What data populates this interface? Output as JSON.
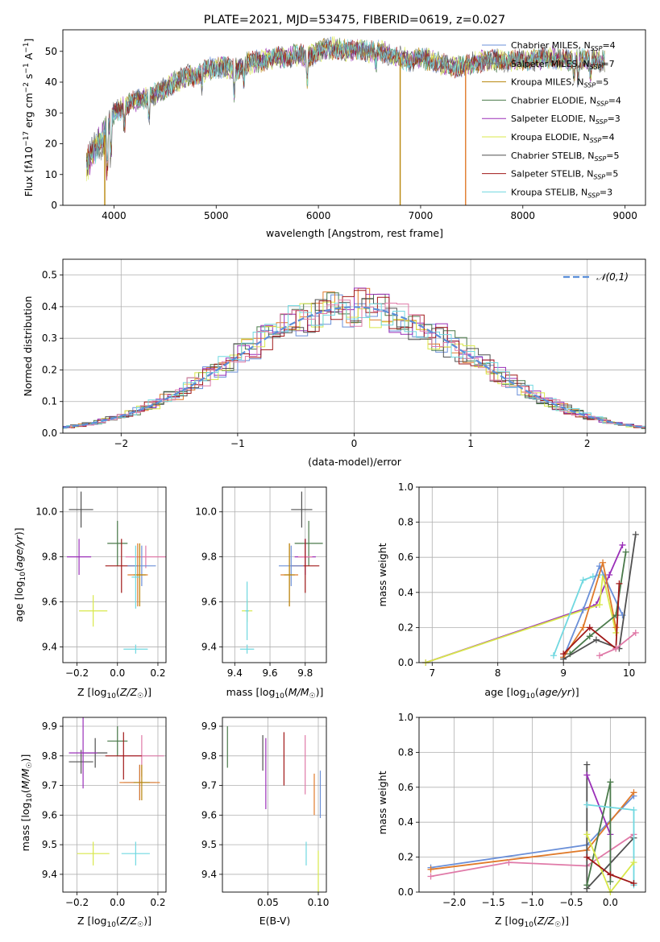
{
  "chart_data": [
    {
      "type": "line",
      "title": "PLATE=2021, MJD=53475, FIBERID=0619, z=0.027",
      "xlabel": "wavelength [Angstrom, rest frame]",
      "ylabel": "Flux [f_λ10^-17 erg cm^-2 s^-1 A^-1]",
      "xlim": [
        3500,
        9200
      ],
      "ylim": [
        0,
        57
      ],
      "xticks": [
        4000,
        5000,
        6000,
        7000,
        8000,
        9000
      ],
      "yticks": [
        0,
        10,
        20,
        30,
        40,
        50
      ],
      "spectrum_x": [
        3730,
        3800,
        3900,
        4000,
        4100,
        4200,
        4300,
        4400,
        4500,
        4600,
        4700,
        4800,
        4900,
        5000,
        5100,
        5200,
        5300,
        5400,
        5500,
        5600,
        5700,
        5800,
        5900,
        6000,
        6100,
        6200,
        6300,
        6400,
        6500,
        6600,
        6700,
        6800,
        6900,
        7000,
        7100,
        7200,
        7300,
        7400,
        7500,
        7600,
        7700,
        7800,
        7900,
        8000,
        8100,
        8200,
        8300,
        8400,
        8500,
        8600,
        8700,
        8800
      ],
      "spectrum_y": [
        13,
        18,
        22,
        30,
        32,
        34,
        35,
        36,
        38,
        40,
        42,
        42,
        44,
        45,
        45,
        44,
        46,
        47,
        47,
        48,
        48,
        49,
        48,
        50,
        51,
        51,
        50,
        51,
        50,
        50,
        49,
        48,
        47,
        48,
        47,
        46,
        45,
        45,
        46,
        47,
        47,
        47,
        47,
        47,
        47,
        48,
        48,
        47,
        47,
        47,
        47,
        47
      ],
      "series": [
        {
          "name": "Chabrier MILES, N_SSP=4",
          "color": "#6a8fd8"
        },
        {
          "name": "Salpeter MILES, N_SSP=7",
          "color": "#7a7a7a"
        },
        {
          "name": "Kroupa MILES, N_SSP=5",
          "color": "#b8860b"
        },
        {
          "name": "Chabrier ELODIE, N_SSP=4",
          "color": "#4a7a4a"
        },
        {
          "name": "Salpeter ELODIE, N_SSP=3",
          "color": "#9a2fb8"
        },
        {
          "name": "Kroupa ELODIE, N_SSP=4",
          "color": "#d8e84a"
        },
        {
          "name": "Chabrier STELIB, N_SSP=5",
          "color": "#505050"
        },
        {
          "name": "Salpeter STELIB, N_SSP=5",
          "color": "#a01818"
        },
        {
          "name": "Kroupa STELIB, N_SSP=3",
          "color": "#70d8e0"
        }
      ],
      "legend": "top-right",
      "grid": false
    },
    {
      "type": "line",
      "xlabel": "(data-model)/error",
      "ylabel": "Normed distribution",
      "xlim": [
        -2.5,
        2.5
      ],
      "ylim": [
        0,
        0.55
      ],
      "xticks": [
        -2,
        -1,
        0,
        1,
        2
      ],
      "yticks": [
        0.0,
        0.1,
        0.2,
        0.3,
        0.4,
        0.5
      ],
      "legend_label": "𝒩(0,1)",
      "legend": "top-right",
      "grid": true,
      "histogram_colors": [
        "#6a8fd8",
        "#e07a2a",
        "#4a7a4a",
        "#9a2fb8",
        "#d8e84a",
        "#505050",
        "#a01818",
        "#70d8e0",
        "#e07aa8"
      ]
    },
    {
      "type": "scatter",
      "xlabel": "Z [log10(Z/Z☉)]",
      "ylabel": "age [log10(age/yr)]",
      "xlim": [
        -0.27,
        0.24
      ],
      "ylim": [
        9.33,
        10.11
      ],
      "xticks": [
        -0.2,
        0.0,
        0.2
      ],
      "yticks": [
        9.4,
        9.6,
        9.8,
        10.0
      ],
      "grid": true,
      "points": [
        {
          "x": -0.18,
          "y": 10.01,
          "xerr": 0.06,
          "yerr": 0.08,
          "color": "#505050"
        },
        {
          "x": 0.0,
          "y": 9.86,
          "xerr": 0.05,
          "yerr": 0.1,
          "color": "#4a7a4a"
        },
        {
          "x": -0.19,
          "y": 9.8,
          "xerr": 0.06,
          "yerr": 0.08,
          "color": "#9a2fb8"
        },
        {
          "x": 0.14,
          "y": 9.8,
          "xerr": 0.1,
          "yerr": 0.05,
          "color": "#e07aa8"
        },
        {
          "x": 0.02,
          "y": 9.76,
          "xerr": 0.08,
          "yerr": 0.12,
          "color": "#a01818"
        },
        {
          "x": 0.12,
          "y": 9.76,
          "xerr": 0.07,
          "yerr": 0.09,
          "color": "#6a8fd8"
        },
        {
          "x": 0.1,
          "y": 9.72,
          "xerr": 0.05,
          "yerr": 0.14,
          "color": "#e07a2a"
        },
        {
          "x": 0.11,
          "y": 9.72,
          "xerr": 0.03,
          "yerr": 0.14,
          "color": "#b8860b"
        },
        {
          "x": 0.09,
          "y": 9.71,
          "xerr": 0.02,
          "yerr": 0.14,
          "color": "#70d8e0"
        },
        {
          "x": -0.12,
          "y": 9.56,
          "xerr": 0.07,
          "yerr": 0.07,
          "color": "#d8e84a"
        },
        {
          "x": 0.09,
          "y": 9.39,
          "xerr": 0.06,
          "yerr": 0.02,
          "color": "#70d8e0"
        }
      ]
    },
    {
      "type": "scatter",
      "xlabel": "mass [log10(M/M☉)]",
      "xlim": [
        9.33,
        9.92
      ],
      "ylim": [
        9.33,
        10.11
      ],
      "xticks": [
        9.4,
        9.6,
        9.8
      ],
      "yticks": [
        9.4,
        9.6,
        9.8,
        10.0
      ],
      "grid": true,
      "points": [
        {
          "x": 9.78,
          "y": 10.01,
          "xerr": 0.06,
          "yerr": 0.08,
          "color": "#505050"
        },
        {
          "x": 9.82,
          "y": 9.86,
          "xerr": 0.08,
          "yerr": 0.1,
          "color": "#4a7a4a"
        },
        {
          "x": 9.8,
          "y": 9.8,
          "xerr": 0.06,
          "yerr": 0.08,
          "color": "#9a2fb8"
        },
        {
          "x": 9.8,
          "y": 9.8,
          "xerr": 0.04,
          "yerr": 0.05,
          "color": "#e07aa8"
        },
        {
          "x": 9.8,
          "y": 9.76,
          "xerr": 0.08,
          "yerr": 0.12,
          "color": "#a01818"
        },
        {
          "x": 9.72,
          "y": 9.76,
          "xerr": 0.07,
          "yerr": 0.09,
          "color": "#6a8fd8"
        },
        {
          "x": 9.71,
          "y": 9.72,
          "xerr": 0.05,
          "yerr": 0.14,
          "color": "#e07a2a"
        },
        {
          "x": 9.71,
          "y": 9.72,
          "xerr": 0.03,
          "yerr": 0.14,
          "color": "#b8860b"
        },
        {
          "x": 9.47,
          "y": 9.56,
          "xerr": 0.03,
          "yerr": 0.05,
          "color": "#d8e84a"
        },
        {
          "x": 9.47,
          "y": 9.56,
          "xerr": 0.01,
          "yerr": 0.13,
          "color": "#70d8e0"
        },
        {
          "x": 9.47,
          "y": 9.39,
          "xerr": 0.04,
          "yerr": 0.02,
          "color": "#70d8e0"
        }
      ]
    },
    {
      "type": "line",
      "xlabel": "age [log10(age/yr)]",
      "ylabel": "mass weight",
      "xlim": [
        6.8,
        10.25
      ],
      "ylim": [
        0,
        1
      ],
      "xticks": [
        7,
        8,
        9,
        10
      ],
      "yticks": [
        0.0,
        0.2,
        0.4,
        0.6,
        0.8,
        1.0
      ],
      "grid": true,
      "series": [
        {
          "color": "#9a2fb8",
          "x": [
            6.9,
            9.5,
            9.7,
            9.9
          ],
          "y": [
            0.0,
            0.33,
            0.5,
            0.67
          ]
        },
        {
          "color": "#d8e84a",
          "x": [
            6.9,
            9.55,
            9.6,
            9.8
          ],
          "y": [
            0.0,
            0.33,
            0.5,
            0.17
          ]
        },
        {
          "color": "#70d8e0",
          "x": [
            8.85,
            9.3,
            9.45,
            9.55
          ],
          "y": [
            0.04,
            0.47,
            0.49,
            0.5
          ]
        },
        {
          "color": "#6a8fd8",
          "x": [
            9.0,
            9.3,
            9.55,
            9.9
          ],
          "y": [
            0.03,
            0.3,
            0.55,
            0.27
          ]
        },
        {
          "color": "#e07a2a",
          "x": [
            9.0,
            9.3,
            9.6,
            9.8
          ],
          "y": [
            0.03,
            0.2,
            0.57,
            0.2
          ]
        },
        {
          "color": "#4a7a4a",
          "x": [
            9.1,
            9.4,
            9.8,
            9.95
          ],
          "y": [
            0.05,
            0.15,
            0.27,
            0.63
          ]
        },
        {
          "color": "#505050",
          "x": [
            9.0,
            9.5,
            9.85,
            10.1
          ],
          "y": [
            0.02,
            0.13,
            0.08,
            0.73
          ]
        },
        {
          "color": "#a01818",
          "x": [
            9.0,
            9.4,
            9.8,
            9.85
          ],
          "y": [
            0.05,
            0.2,
            0.08,
            0.45
          ]
        },
        {
          "color": "#e07aa8",
          "x": [
            9.55,
            9.8,
            10.1
          ],
          "y": [
            0.04,
            0.08,
            0.17
          ]
        }
      ]
    },
    {
      "type": "scatter",
      "xlabel": "Z [log10(Z/Z☉)]",
      "ylabel": "mass [log10(M/M☉)]",
      "xlim": [
        -0.27,
        0.24
      ],
      "ylim": [
        9.34,
        9.93
      ],
      "xticks": [
        -0.2,
        0.0,
        0.2
      ],
      "yticks": [
        9.4,
        9.5,
        9.6,
        9.7,
        9.8,
        9.9
      ],
      "grid": true,
      "points": [
        {
          "x": 0.0,
          "y": 9.85,
          "xerr": 0.05,
          "yerr": 0.05,
          "color": "#4a7a4a"
        },
        {
          "x": -0.18,
          "y": 9.78,
          "xerr": 0.06,
          "yerr": 0.04,
          "color": "#505050"
        },
        {
          "x": -0.11,
          "y": 9.81,
          "xerr": 0.06,
          "yerr": 0.05,
          "color": "#505050"
        },
        {
          "x": -0.17,
          "y": 9.81,
          "xerr": 0.07,
          "yerr": 0.12,
          "color": "#9a2fb8"
        },
        {
          "x": 0.12,
          "y": 9.8,
          "xerr": 0.11,
          "yerr": 0.07,
          "color": "#e07aa8"
        },
        {
          "x": 0.03,
          "y": 9.8,
          "xerr": 0.09,
          "yerr": 0.08,
          "color": "#a01818"
        },
        {
          "x": 0.11,
          "y": 9.71,
          "xerr": 0.08,
          "yerr": 0.06,
          "color": "#6a8fd8"
        },
        {
          "x": 0.11,
          "y": 9.71,
          "xerr": 0.1,
          "yerr": 0.06,
          "color": "#e07a2a"
        },
        {
          "x": 0.12,
          "y": 9.71,
          "xerr": 0.04,
          "yerr": 0.06,
          "color": "#b8860b"
        },
        {
          "x": -0.12,
          "y": 9.47,
          "xerr": 0.08,
          "yerr": 0.04,
          "color": "#d8e84a"
        },
        {
          "x": 0.09,
          "y": 9.47,
          "xerr": 0.07,
          "yerr": 0.04,
          "color": "#70d8e0"
        }
      ]
    },
    {
      "type": "scatter",
      "xlabel": "E(B-V)",
      "xlim": [
        0.005,
        0.108
      ],
      "ylim": [
        9.34,
        9.93
      ],
      "xticks": [
        0.05,
        0.1
      ],
      "yticks": [
        9.4,
        9.5,
        9.6,
        9.7,
        9.8,
        9.9
      ],
      "grid": true,
      "points": [
        {
          "x": 0.01,
          "y": 9.83,
          "xerr": 0,
          "yerr": 0.07,
          "color": "#4a7a4a"
        },
        {
          "x": 0.045,
          "y": 9.81,
          "xerr": 0,
          "yerr": 0.06,
          "color": "#505050"
        },
        {
          "x": 0.048,
          "y": 9.74,
          "xerr": 0,
          "yerr": 0.12,
          "color": "#9a2fb8"
        },
        {
          "x": 0.066,
          "y": 9.79,
          "xerr": 0,
          "yerr": 0.09,
          "color": "#a01818"
        },
        {
          "x": 0.087,
          "y": 9.77,
          "xerr": 0,
          "yerr": 0.1,
          "color": "#e07aa8"
        },
        {
          "x": 0.096,
          "y": 9.67,
          "xerr": 0,
          "yerr": 0.07,
          "color": "#e07a2a"
        },
        {
          "x": 0.102,
          "y": 9.67,
          "xerr": 0,
          "yerr": 0.08,
          "color": "#6a8fd8"
        },
        {
          "x": 0.088,
          "y": 9.47,
          "xerr": 0,
          "yerr": 0.04,
          "color": "#70d8e0"
        },
        {
          "x": 0.1,
          "y": 9.41,
          "xerr": 0,
          "yerr": 0.07,
          "color": "#d8e84a"
        }
      ]
    },
    {
      "type": "line",
      "xlabel": "Z [log10(Z/Z☉)]",
      "ylabel": "mass weight",
      "xlim": [
        -2.45,
        0.45
      ],
      "ylim": [
        0,
        1
      ],
      "xticks": [
        -2.0,
        -1.5,
        -1.0,
        -0.5,
        0.0
      ],
      "yticks": [
        0.0,
        0.2,
        0.4,
        0.6,
        0.8,
        1.0
      ],
      "grid": true,
      "series": [
        {
          "color": "#6a8fd8",
          "x": [
            -2.3,
            -0.3,
            0.3
          ],
          "y": [
            0.14,
            0.27,
            0.55
          ]
        },
        {
          "color": "#e07a2a",
          "x": [
            -2.3,
            -0.3,
            0.3
          ],
          "y": [
            0.13,
            0.24,
            0.57
          ]
        },
        {
          "color": "#e07aa8",
          "x": [
            -2.3,
            -1.3,
            -0.3,
            0.3
          ],
          "y": [
            0.09,
            0.17,
            0.15,
            0.33
          ]
        },
        {
          "color": "#505050",
          "x": [
            -0.3,
            -0.3,
            0.3
          ],
          "y": [
            0.73,
            0.02,
            0.31
          ]
        },
        {
          "color": "#9a2fb8",
          "x": [
            -0.3,
            0.0,
            0.0
          ],
          "y": [
            0.67,
            0.33,
            0.1
          ]
        },
        {
          "color": "#4a7a4a",
          "x": [
            -0.3,
            0.0,
            0.0
          ],
          "y": [
            0.04,
            0.63,
            0.06
          ]
        },
        {
          "color": "#70d8e0",
          "x": [
            -0.3,
            0.3,
            0.3
          ],
          "y": [
            0.5,
            0.47,
            0.04
          ]
        },
        {
          "color": "#d8e84a",
          "x": [
            -0.3,
            0.0,
            0.3
          ],
          "y": [
            0.33,
            0.0,
            0.17
          ]
        },
        {
          "color": "#a01818",
          "x": [
            -0.3,
            0.0,
            0.3
          ],
          "y": [
            0.2,
            0.1,
            0.05
          ]
        }
      ]
    }
  ]
}
